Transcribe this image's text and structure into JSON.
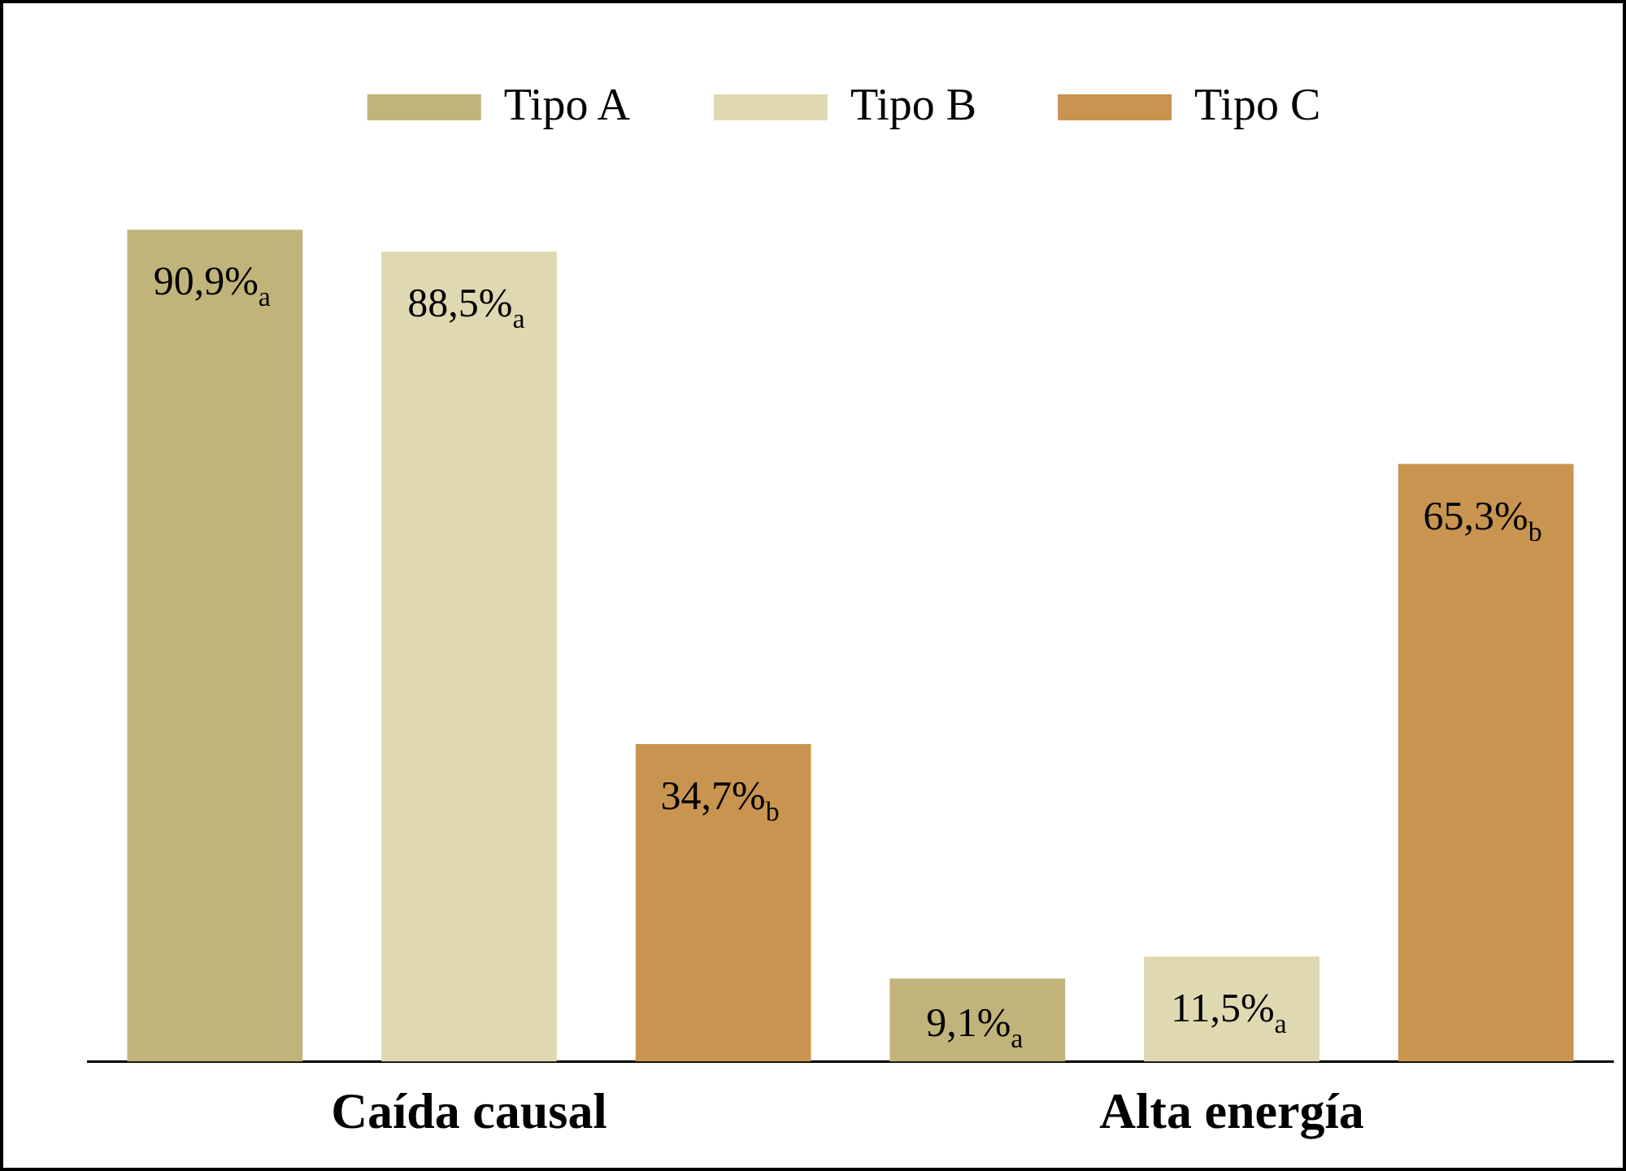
{
  "chart_data": {
    "type": "bar",
    "categories": [
      "Caída causal",
      "Alta energía"
    ],
    "series": [
      {
        "name": "Tipo A",
        "color": "#c0b47a",
        "values": [
          90.9,
          9.1
        ],
        "value_labels": [
          "90,9%$_{a}$",
          "9,1%$_{a}$"
        ]
      },
      {
        "name": "Tipo B",
        "color": "#e0d8b0",
        "values": [
          88.5,
          11.5
        ],
        "value_labels": [
          "88,5%$_{a}$",
          "11,5%$_{a}$"
        ]
      },
      {
        "name": "Tipo C",
        "color": "#c8944f",
        "values": [
          34.7,
          65.3
        ],
        "value_labels": [
          "34,7%$_{b}$",
          "65,3%$_{b}$"
        ]
      }
    ],
    "tick_labels": "x",
    "grid": false,
    "legend": "top"
  }
}
